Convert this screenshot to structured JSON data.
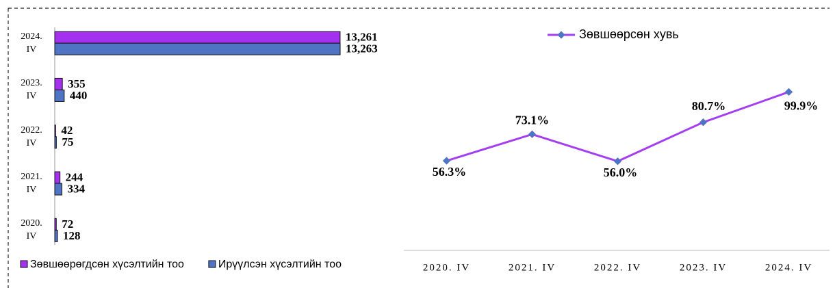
{
  "chart_data": [
    {
      "type": "hbar",
      "categories": [
        "2024. IV",
        "2023. IV",
        "2022. IV",
        "2021. IV",
        "2020. IV"
      ],
      "series": [
        {
          "name": "Зөвшөөрөгдсөн хүсэлтийн тоо",
          "color": "#a431f0",
          "values": [
            13261,
            355,
            42,
            244,
            72
          ],
          "value_labels": [
            "13,261",
            "355",
            "42",
            "244",
            "72"
          ]
        },
        {
          "name": "Ирүүлсэн хүсэлтийн тоо",
          "color": "#4f74c4",
          "values": [
            13263,
            440,
            75,
            334,
            128
          ],
          "value_labels": [
            "13,263",
            "440",
            "75",
            "334",
            "128"
          ]
        }
      ]
    },
    {
      "type": "line",
      "categories": [
        "2020. IV",
        "2021. IV",
        "2022. IV",
        "2023. IV",
        "2024. IV"
      ],
      "series": [
        {
          "name": "Зөвшөөрсөн хувь",
          "color": "#a43ff0",
          "marker_color": "#4f74c4",
          "values": [
            56.3,
            73.1,
            56.0,
            80.7,
            99.9
          ],
          "value_labels": [
            "56.3%",
            "73.1%",
            "56.0%",
            "80.7%",
            "99.9%"
          ]
        }
      ],
      "ylim": [
        0,
        120
      ]
    }
  ]
}
